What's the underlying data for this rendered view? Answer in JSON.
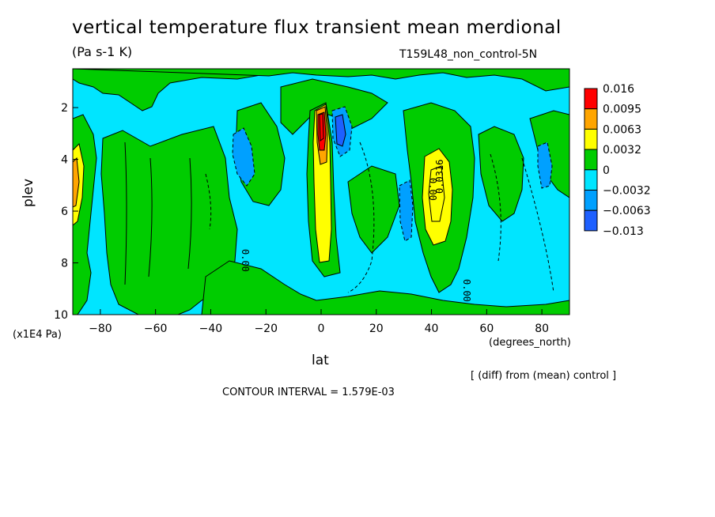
{
  "header": {
    "title": "vertical temperature flux transient mean merdional",
    "units": "(Pa s-1 K)",
    "dataset": "T159L48_non_control-5N"
  },
  "footer": {
    "diff_note": "[ (diff) from (mean) control ]",
    "contour_interval": "CONTOUR INTERVAL = 1.579E-03"
  },
  "chart_data": {
    "type": "heatmap",
    "title": "vertical temperature flux transient mean merdional",
    "subtitle": "(Pa s-1 K)",
    "xlabel": "lat",
    "xunit": "(degrees_north)",
    "ylabel": "plev",
    "yunit": "(x1E4 Pa)",
    "xlim": [
      -90,
      90
    ],
    "ylim": [
      10,
      0.5
    ],
    "x_ticks": [
      -80,
      -60,
      -40,
      -20,
      0,
      20,
      40,
      60,
      80
    ],
    "y_ticks": [
      2,
      4,
      6,
      8,
      10
    ],
    "colorbar": {
      "labels": [
        "0.016",
        "0.0095",
        "0.0063",
        "0.0032",
        "0",
        "−0.0032",
        "−0.0063",
        "−0.013"
      ],
      "colors": [
        "#ff0000",
        "#ffa500",
        "#ffff00",
        "#00cc00",
        "#00e5ff",
        "#00a0ff",
        "#1e60ff"
      ]
    },
    "levels": [
      "<−0.0063",
      "−0.0063–−0.0032",
      "−0.0032–0",
      "0–0.0032",
      "0.0032–0.0063",
      "0.0063–0.0095",
      ">0.0095"
    ],
    "contour_labels": [
      "0.00",
      "0.0316",
      "0.00",
      "0.00"
    ],
    "grid": false
  }
}
